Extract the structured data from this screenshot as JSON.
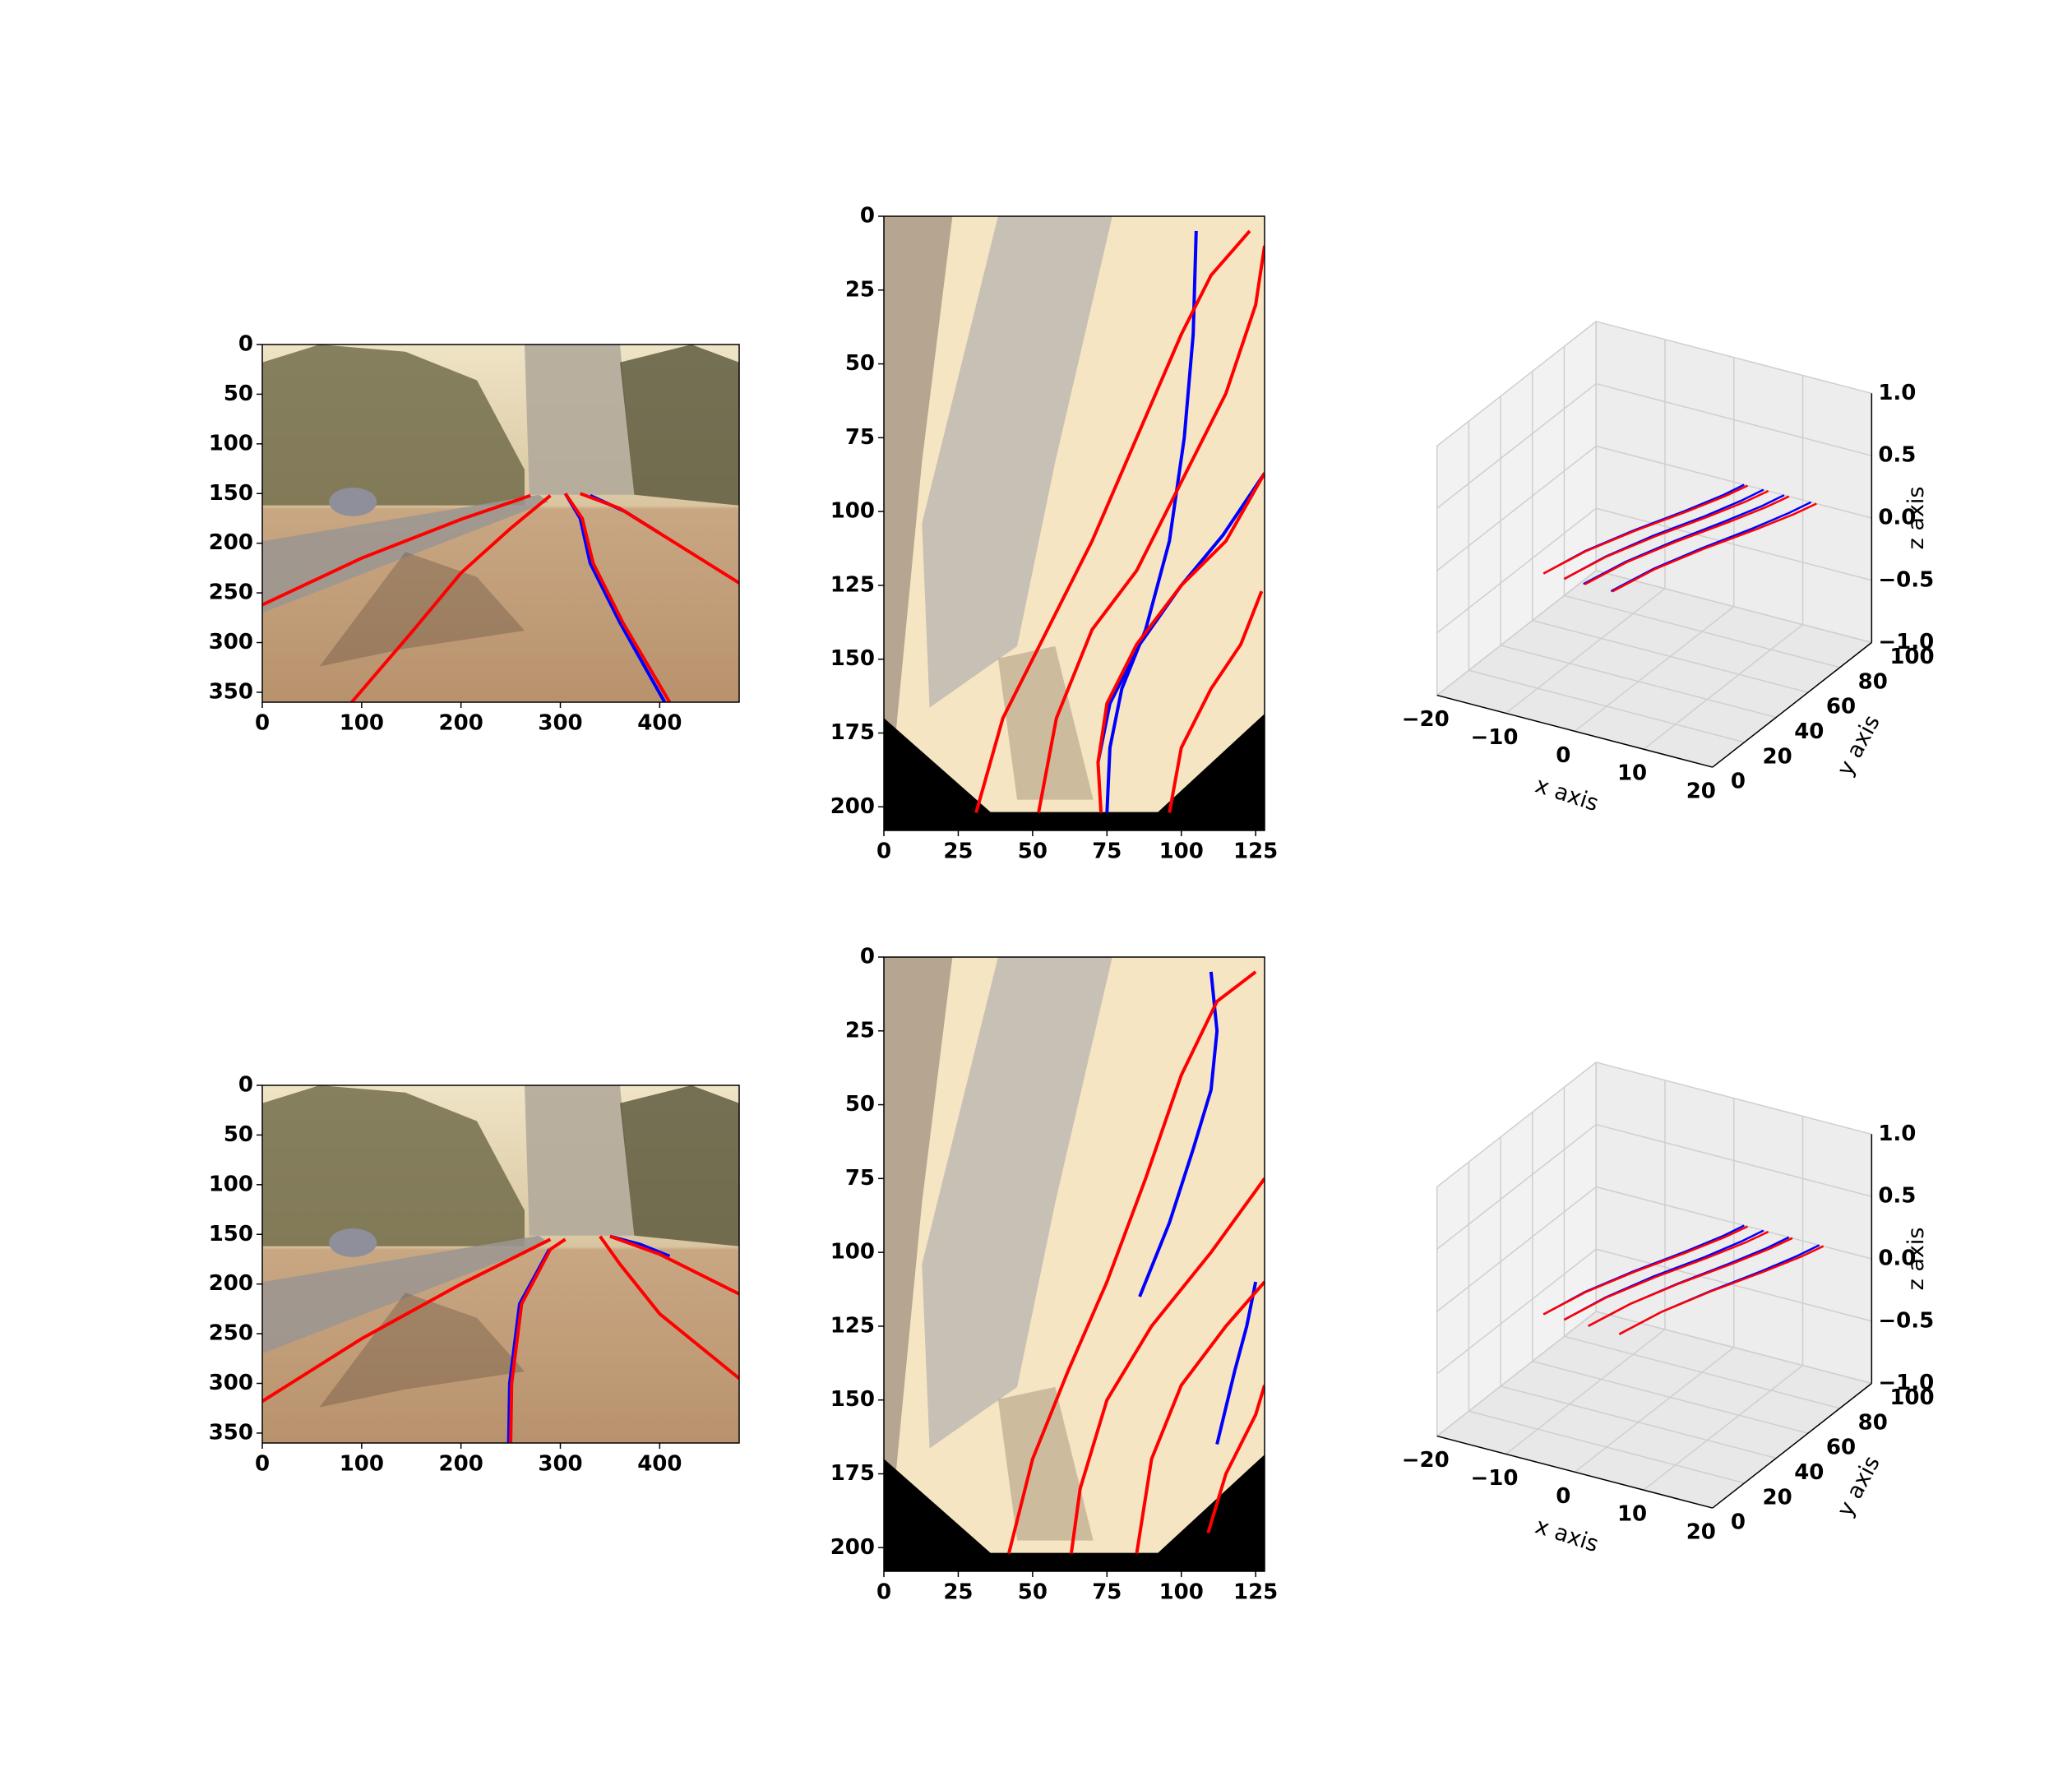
{
  "chart_data": [
    {
      "type": "image",
      "xlim": [
        0,
        480
      ],
      "ylim": [
        360,
        0
      ],
      "xticks": [
        0,
        100,
        200,
        300,
        400
      ],
      "yticks": [
        0,
        50,
        100,
        150,
        200,
        250,
        300,
        350
      ],
      "series": [
        {
          "color": "#0000ff",
          "x": [
            305,
            320,
            330,
            360,
            405
          ],
          "y": [
            150,
            175,
            220,
            280,
            360
          ]
        },
        {
          "color": "#0000ff",
          "x": [
            330,
            365,
            400
          ],
          "y": [
            152,
            168,
            190
          ]
        },
        {
          "color": "#ff0000",
          "x": [
            0,
            100,
            200,
            270
          ],
          "y": [
            262,
            215,
            176,
            152
          ]
        },
        {
          "color": "#ff0000",
          "x": [
            90,
            150,
            200,
            250,
            290
          ],
          "y": [
            360,
            290,
            230,
            185,
            152
          ]
        },
        {
          "color": "#ff0000",
          "x": [
            305,
            322,
            333,
            363,
            410
          ],
          "y": [
            150,
            175,
            220,
            280,
            360
          ]
        },
        {
          "color": "#ff0000",
          "x": [
            320,
            360,
            400,
            480
          ],
          "y": [
            150,
            165,
            190,
            240
          ]
        }
      ]
    },
    {
      "type": "image",
      "xlim": [
        0,
        128
      ],
      "ylim": [
        208,
        0
      ],
      "xticks": [
        0,
        25,
        50,
        75,
        100,
        125
      ],
      "yticks": [
        0,
        25,
        50,
        75,
        100,
        125,
        150,
        175,
        200
      ],
      "series": [
        {
          "color": "#0000ff",
          "x": [
            75,
            76,
            80,
            88,
            96,
            101,
            104,
            105
          ],
          "y": [
            202,
            180,
            160,
            140,
            110,
            75,
            40,
            5
          ]
        },
        {
          "color": "#0000ff",
          "x": [
            72,
            76,
            86,
            100,
            114,
            128
          ],
          "y": [
            185,
            165,
            145,
            125,
            108,
            87
          ]
        },
        {
          "color": "#ff0000",
          "x": [
            31,
            40,
            55,
            70,
            85,
            100,
            110,
            123
          ],
          "y": [
            202,
            170,
            140,
            110,
            75,
            40,
            20,
            5
          ]
        },
        {
          "color": "#ff0000",
          "x": [
            52,
            58,
            70,
            85,
            100,
            115,
            125,
            128
          ],
          "y": [
            202,
            170,
            140,
            120,
            90,
            60,
            30,
            10
          ]
        },
        {
          "color": "#ff0000",
          "x": [
            73,
            72,
            75,
            85,
            100,
            115,
            128
          ],
          "y": [
            202,
            185,
            165,
            145,
            125,
            110,
            87
          ]
        },
        {
          "color": "#ff0000",
          "x": [
            96,
            100,
            110,
            120,
            127
          ],
          "y": [
            202,
            180,
            160,
            145,
            127
          ]
        }
      ]
    },
    {
      "type": "line3d",
      "xlabel": "x axis",
      "ylabel": "y axis",
      "zlabel": "z axis",
      "xlim": [
        -20,
        20
      ],
      "ylim": [
        0,
        100
      ],
      "zlim": [
        -1,
        1
      ],
      "xticks": [
        {
          "value": -20,
          "label": "−20"
        },
        {
          "value": -10,
          "label": "−10"
        },
        0,
        10,
        20
      ],
      "yticks": [
        0,
        20,
        40,
        60,
        80,
        100
      ],
      "zticks": [
        {
          "value": -1,
          "label": "−1.0"
        },
        {
          "value": -0.5,
          "label": "−0.5"
        },
        {
          "value": 0,
          "label": "0.0"
        },
        0.5,
        {
          "value": 1,
          "label": "1.0"
        }
      ],
      "series": [
        {
          "color": "#0000ff",
          "x": [
            -8,
            -6.6,
            -4.2,
            -1.3,
            0.6,
            1.5
          ],
          "y": [
            15,
            35,
            55,
            75,
            90,
            100
          ],
          "z": [
            0,
            0,
            0,
            0,
            0,
            0
          ]
        },
        {
          "color": "#0000ff",
          "x": [
            -5,
            -3.6,
            -1.3,
            1.6,
            3.4,
            4.3
          ],
          "y": [
            15,
            35,
            55,
            75,
            90,
            100
          ],
          "z": [
            0,
            0,
            0,
            0,
            0,
            0
          ]
        },
        {
          "color": "#0000ff",
          "x": [
            -2.2,
            -0.7,
            1.7,
            4.5,
            6.4,
            7.3
          ],
          "y": [
            15,
            35,
            55,
            75,
            90,
            100
          ],
          "z": [
            0,
            0,
            0,
            0,
            0,
            0
          ]
        },
        {
          "color": "#0000ff",
          "x": [
            1.8,
            3.3,
            5.7,
            8.5,
            10.3,
            11.2
          ],
          "y": [
            15,
            35,
            55,
            75,
            90,
            100
          ],
          "z": [
            0,
            0,
            0,
            0,
            0,
            0
          ]
        },
        {
          "color": "#ff0000",
          "x": [
            -8,
            -6.5,
            -4,
            -1,
            1,
            2
          ],
          "y": [
            15,
            35,
            55,
            75,
            90,
            100
          ],
          "z": [
            0,
            0,
            0,
            0,
            0,
            0
          ]
        },
        {
          "color": "#ff0000",
          "x": [
            -5,
            -3.5,
            -1,
            2,
            4,
            5
          ],
          "y": [
            15,
            35,
            55,
            75,
            90,
            100
          ],
          "z": [
            0,
            0,
            0,
            0,
            0,
            0
          ]
        },
        {
          "color": "#ff0000",
          "x": [
            -2,
            -0.5,
            2,
            5,
            7,
            8
          ],
          "y": [
            15,
            35,
            55,
            75,
            90,
            100
          ],
          "z": [
            0,
            0,
            0,
            0,
            0,
            0
          ]
        },
        {
          "color": "#ff0000",
          "x": [
            2,
            3.5,
            6,
            9,
            11,
            12
          ],
          "y": [
            15,
            35,
            55,
            75,
            90,
            100
          ],
          "z": [
            0,
            0,
            0,
            0,
            0,
            0
          ]
        }
      ]
    },
    {
      "type": "image",
      "xlim": [
        0,
        480
      ],
      "ylim": [
        360,
        0
      ],
      "xticks": [
        0,
        100,
        200,
        300,
        400
      ],
      "yticks": [
        0,
        50,
        100,
        150,
        200,
        250,
        300,
        350
      ],
      "series": [
        {
          "color": "#0000ff",
          "x": [
            248,
            249,
            259,
            289
          ],
          "y": [
            360,
            300,
            220,
            165
          ]
        },
        {
          "color": "#0000ff",
          "x": [
            350,
            380,
            410
          ],
          "y": [
            152,
            160,
            172
          ]
        },
        {
          "color": "#ff0000",
          "x": [
            0,
            100,
            200,
            290
          ],
          "y": [
            318,
            255,
            200,
            155
          ]
        },
        {
          "color": "#ff0000",
          "x": [
            250,
            251,
            261,
            290,
            305
          ],
          "y": [
            360,
            300,
            220,
            165,
            155
          ]
        },
        {
          "color": "#ff0000",
          "x": [
            340,
            360,
            400,
            480
          ],
          "y": [
            152,
            180,
            230,
            295
          ]
        },
        {
          "color": "#ff0000",
          "x": [
            350,
            400,
            480
          ],
          "y": [
            152,
            170,
            210
          ]
        }
      ]
    },
    {
      "type": "image",
      "xlim": [
        0,
        128
      ],
      "ylim": [
        208,
        0
      ],
      "xticks": [
        0,
        25,
        50,
        75,
        100,
        125
      ],
      "yticks": [
        0,
        25,
        50,
        75,
        100,
        125,
        150,
        175,
        200
      ],
      "series": [
        {
          "color": "#0000ff",
          "x": [
            110,
            112,
            110,
            104,
            96,
            86
          ],
          "y": [
            5,
            25,
            45,
            65,
            90,
            115
          ]
        },
        {
          "color": "#0000ff",
          "x": [
            125,
            122,
            118,
            112
          ],
          "y": [
            110,
            125,
            140,
            165
          ]
        },
        {
          "color": "#ff0000",
          "x": [
            42,
            50,
            62,
            75,
            88,
            100,
            112,
            125
          ],
          "y": [
            202,
            170,
            140,
            110,
            75,
            40,
            15,
            5
          ]
        },
        {
          "color": "#ff0000",
          "x": [
            63,
            66,
            75,
            90,
            110,
            128
          ],
          "y": [
            202,
            180,
            150,
            125,
            100,
            75
          ]
        },
        {
          "color": "#ff0000",
          "x": [
            85,
            90,
            100,
            115,
            128
          ],
          "y": [
            202,
            170,
            145,
            125,
            110
          ]
        },
        {
          "color": "#ff0000",
          "x": [
            109,
            115,
            125,
            128
          ],
          "y": [
            195,
            175,
            155,
            145
          ]
        }
      ]
    },
    {
      "type": "line3d",
      "xlabel": "x axis",
      "ylabel": "y axis",
      "zlabel": "z axis",
      "xlim": [
        -20,
        20
      ],
      "ylim": [
        0,
        100
      ],
      "zlim": [
        -1,
        1
      ],
      "xticks": [
        {
          "value": -20,
          "label": "−20"
        },
        {
          "value": -10,
          "label": "−10"
        },
        0,
        10,
        20
      ],
      "yticks": [
        0,
        20,
        40,
        60,
        80,
        100
      ],
      "zticks": [
        {
          "value": -1,
          "label": "−1.0"
        },
        {
          "value": -0.5,
          "label": "−0.5"
        },
        {
          "value": 0,
          "label": "0.0"
        },
        0.5,
        {
          "value": 1,
          "label": "1.0"
        }
      ],
      "series": [
        {
          "color": "#0000ff",
          "x": [
            -8,
            -6.6,
            -4.2,
            -1.3,
            0.6,
            1.5
          ],
          "y": [
            15,
            35,
            55,
            75,
            90,
            100
          ],
          "z": [
            0,
            0,
            0,
            0,
            0,
            0
          ]
        },
        {
          "color": "#0000ff",
          "x": [
            -5,
            -3.6,
            -1.3,
            1.6,
            3.4,
            4.3
          ],
          "y": [
            15,
            35,
            55,
            75,
            90,
            100
          ],
          "z": [
            0,
            0,
            0,
            0,
            0,
            0
          ]
        },
        {
          "color": "#0000ff",
          "x": [
            -1.5,
            0,
            2.4,
            5.2,
            7.1,
            8
          ],
          "y": [
            15,
            35,
            55,
            75,
            90,
            100
          ],
          "z": [
            0,
            0,
            0,
            0,
            0,
            0
          ]
        },
        {
          "color": "#0000ff",
          "x": [
            3,
            4.5,
            6.9,
            9.7,
            11.5,
            12.4
          ],
          "y": [
            15,
            35,
            55,
            75,
            90,
            100
          ],
          "z": [
            0,
            0,
            0,
            0,
            0,
            0
          ]
        },
        {
          "color": "#ff0000",
          "x": [
            -8,
            -6.5,
            -4,
            -1,
            1,
            2
          ],
          "y": [
            15,
            35,
            55,
            75,
            90,
            100
          ],
          "z": [
            0,
            0,
            0,
            0,
            0,
            0
          ]
        },
        {
          "color": "#ff0000",
          "x": [
            -5,
            -3.5,
            -1,
            2,
            4,
            5
          ],
          "y": [
            15,
            35,
            55,
            75,
            90,
            100
          ],
          "z": [
            0,
            0,
            0,
            0,
            0,
            0
          ]
        },
        {
          "color": "#ff0000",
          "x": [
            -1.5,
            0,
            2.5,
            5.5,
            7.5,
            8.5
          ],
          "y": [
            15,
            35,
            55,
            75,
            90,
            100
          ],
          "z": [
            0,
            0,
            0,
            0,
            0,
            0
          ]
        },
        {
          "color": "#ff0000",
          "x": [
            3,
            4.5,
            7,
            10,
            12,
            13
          ],
          "y": [
            15,
            35,
            55,
            75,
            90,
            100
          ],
          "z": [
            0,
            0,
            0,
            0,
            0,
            0
          ]
        }
      ]
    }
  ]
}
